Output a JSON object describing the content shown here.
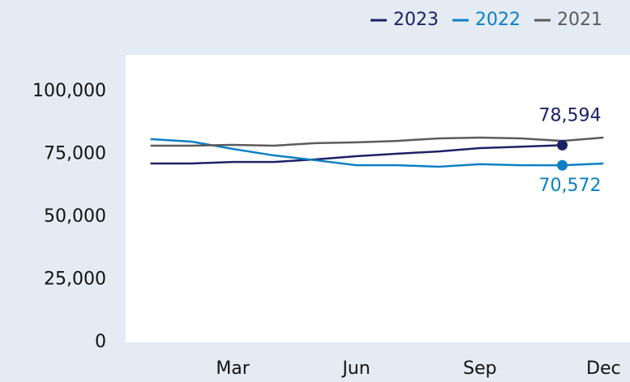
{
  "chart_data": {
    "type": "line",
    "categories": [
      null,
      null,
      "Mar",
      null,
      null,
      "Jun",
      null,
      null,
      "Sep",
      null,
      null,
      "Dec"
    ],
    "series": [
      {
        "name": "2023",
        "color": "#1b2163",
        "values": [
          71300,
          71300,
          71900,
          71900,
          72900,
          74200,
          75200,
          76100,
          77400,
          78000,
          78594,
          null
        ],
        "value_labels": [
          null,
          null,
          null,
          null,
          null,
          null,
          null,
          null,
          null,
          null,
          "78,594",
          null
        ]
      },
      {
        "name": "2022",
        "color": "#0b7fc3",
        "values": [
          81000,
          80000,
          77100,
          74500,
          72600,
          70600,
          70600,
          70000,
          71000,
          70600,
          70572,
          71300
        ],
        "value_labels": [
          null,
          null,
          null,
          null,
          null,
          null,
          null,
          null,
          null,
          null,
          "70,572",
          null
        ]
      },
      {
        "name": "2021",
        "color": "#5b5b5b",
        "values": [
          78400,
          78400,
          78700,
          78400,
          79400,
          79700,
          80300,
          81300,
          81600,
          81300,
          80300,
          81600
        ]
      }
    ],
    "ylim": [
      0,
      100000
    ],
    "yticks": [
      {
        "value": 0,
        "label": "0"
      },
      {
        "value": 25000,
        "label": "25,000"
      },
      {
        "value": 50000,
        "label": "50,000"
      },
      {
        "value": 75000,
        "label": "75,000"
      },
      {
        "value": 100000,
        "label": "100,000"
      }
    ],
    "legend": "top-right"
  }
}
